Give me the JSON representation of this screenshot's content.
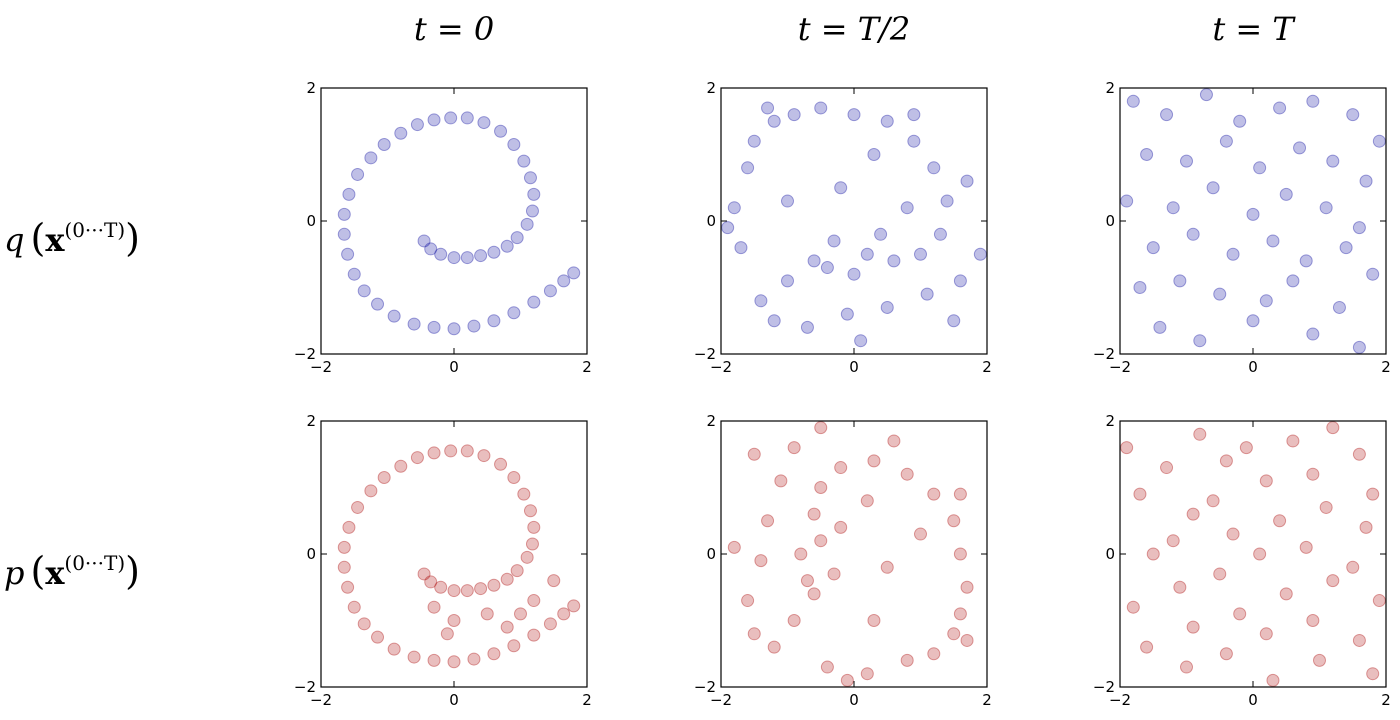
{
  "chart_data": [
    {
      "type": "scatter",
      "title": "t = 0",
      "row_label": {
        "func": "q",
        "open": "(",
        "var": "x",
        "sup": "(0···T)",
        "close": ")"
      },
      "color": "#1a1aa6",
      "x": [
        -0.45,
        -0.35,
        -0.2,
        0,
        0.2,
        0.4,
        0.6,
        0.8,
        0.95,
        1.1,
        1.18,
        1.2,
        1.15,
        1.05,
        0.9,
        0.7,
        0.45,
        0.2,
        -0.05,
        -0.3,
        -0.55,
        -0.8,
        -1.05,
        -1.25,
        -1.45,
        -1.58,
        -1.65,
        -1.65,
        -1.6,
        -1.5,
        -1.35,
        -1.15,
        -0.9,
        -0.6,
        -0.3,
        0,
        0.3,
        0.6,
        0.9,
        1.2,
        1.45,
        1.65,
        1.8
      ],
      "y": [
        -0.3,
        -0.42,
        -0.5,
        -0.55,
        -0.55,
        -0.52,
        -0.47,
        -0.38,
        -0.25,
        -0.05,
        0.15,
        0.4,
        0.65,
        0.9,
        1.15,
        1.35,
        1.48,
        1.55,
        1.55,
        1.52,
        1.45,
        1.32,
        1.15,
        0.95,
        0.7,
        0.4,
        0.1,
        -0.2,
        -0.5,
        -0.8,
        -1.05,
        -1.25,
        -1.43,
        -1.55,
        -1.6,
        -1.62,
        -1.58,
        -1.5,
        -1.38,
        -1.22,
        -1.05,
        -0.9,
        -0.78
      ],
      "xlim": [
        -2,
        2
      ],
      "ylim": [
        -2,
        2
      ],
      "xticks": [
        {
          "value": -2,
          "label": "−2"
        },
        0,
        2
      ],
      "yticks": [
        {
          "value": -2,
          "label": "−2"
        },
        0,
        2
      ]
    },
    {
      "type": "scatter",
      "title": "t = T/2",
      "color": "#1a1aa6",
      "x": [
        -1.5,
        -1.2,
        -0.9,
        -0.5,
        0,
        0.5,
        0.9,
        1.2,
        1.4,
        1.3,
        1.0,
        0.6,
        0.2,
        -0.3,
        -0.6,
        -1.0,
        -1.4,
        -1.7,
        -1.8,
        -1.6,
        -1.2,
        -0.7,
        -0.1,
        0.5,
        1.1,
        1.6,
        1.9,
        -0.4,
        0,
        0.4,
        0.8,
        -0.2,
        0.3,
        -1.9,
        1.7,
        -1.0,
        0.1,
        -1.3,
        0.9,
        1.5
      ],
      "y": [
        1.2,
        1.5,
        1.6,
        1.7,
        1.6,
        1.5,
        1.2,
        0.8,
        0.3,
        -0.2,
        -0.5,
        -0.6,
        -0.5,
        -0.3,
        -0.6,
        -0.9,
        -1.2,
        -0.4,
        0.2,
        0.8,
        -1.5,
        -1.6,
        -1.4,
        -1.3,
        -1.1,
        -0.9,
        -0.5,
        -0.7,
        -0.8,
        -0.2,
        0.2,
        0.5,
        1.0,
        -0.1,
        0.6,
        0.3,
        -1.8,
        1.7,
        1.6,
        -1.5
      ],
      "xlim": [
        -2,
        2
      ],
      "ylim": [
        -2,
        2
      ],
      "xticks": [
        {
          "value": -2,
          "label": "−2"
        },
        0,
        2
      ],
      "yticks": [
        {
          "value": -2,
          "label": "−2"
        },
        0,
        2
      ]
    },
    {
      "type": "scatter",
      "title": "t = T",
      "color": "#1a1aa6",
      "x": [
        -1.8,
        -1.3,
        -0.7,
        -0.2,
        0.4,
        0.9,
        1.5,
        1.9,
        -1.6,
        -1.0,
        -0.4,
        0.1,
        0.7,
        1.2,
        1.7,
        -1.9,
        -1.2,
        -0.6,
        0,
        0.5,
        1.1,
        1.6,
        -1.5,
        -0.9,
        -0.3,
        0.3,
        0.8,
        1.4,
        1.8,
        -1.7,
        -1.1,
        -0.5,
        0.2,
        0.6,
        1.3,
        -1.4,
        -0.8,
        0,
        0.9,
        1.6
      ],
      "y": [
        1.8,
        1.6,
        1.9,
        1.5,
        1.7,
        1.8,
        1.6,
        1.2,
        1.0,
        0.9,
        1.2,
        0.8,
        1.1,
        0.9,
        0.6,
        0.3,
        0.2,
        0.5,
        0.1,
        0.4,
        0.2,
        -0.1,
        -0.4,
        -0.2,
        -0.5,
        -0.3,
        -0.6,
        -0.4,
        -0.8,
        -1.0,
        -0.9,
        -1.1,
        -1.2,
        -0.9,
        -1.3,
        -1.6,
        -1.8,
        -1.5,
        -1.7,
        -1.9
      ],
      "xlim": [
        -2,
        2
      ],
      "ylim": [
        -2,
        2
      ],
      "xticks": [
        {
          "value": -2,
          "label": "−2"
        },
        0,
        2
      ],
      "yticks": [
        {
          "value": -2,
          "label": "−2"
        },
        0,
        2
      ]
    },
    {
      "type": "scatter",
      "row_label": {
        "func": "p",
        "open": "(",
        "var": "x",
        "sup": "(0···T)",
        "close": ")"
      },
      "color": "#b01414",
      "x": [
        -0.45,
        -0.35,
        -0.2,
        0,
        0.2,
        0.4,
        0.6,
        0.8,
        0.95,
        1.1,
        1.18,
        1.2,
        1.15,
        1.05,
        0.9,
        0.7,
        0.45,
        0.2,
        -0.05,
        -0.3,
        -0.55,
        -0.8,
        -1.05,
        -1.25,
        -1.45,
        -1.58,
        -1.65,
        -1.65,
        -1.6,
        -1.5,
        -1.35,
        -1.15,
        -0.9,
        -0.6,
        -0.3,
        0,
        0.3,
        0.6,
        0.9,
        1.2,
        1.45,
        1.65,
        1.8,
        -0.3,
        0,
        0.5,
        1.0,
        1.5,
        -0.1,
        1.2,
        0.8
      ],
      "y": [
        -0.3,
        -0.42,
        -0.5,
        -0.55,
        -0.55,
        -0.52,
        -0.47,
        -0.38,
        -0.25,
        -0.05,
        0.15,
        0.4,
        0.65,
        0.9,
        1.15,
        1.35,
        1.48,
        1.55,
        1.55,
        1.52,
        1.45,
        1.32,
        1.15,
        0.95,
        0.7,
        0.4,
        0.1,
        -0.2,
        -0.5,
        -0.8,
        -1.05,
        -1.25,
        -1.43,
        -1.55,
        -1.6,
        -1.62,
        -1.58,
        -1.5,
        -1.38,
        -1.22,
        -1.05,
        -0.9,
        -0.78,
        -0.8,
        -1.0,
        -0.9,
        -0.9,
        -0.4,
        -1.2,
        -0.7,
        -1.1
      ],
      "xlim": [
        -2,
        2
      ],
      "ylim": [
        -2,
        2
      ],
      "xticks": [
        {
          "value": -2,
          "label": "−2"
        },
        0,
        2
      ],
      "yticks": [
        {
          "value": -2,
          "label": "−2"
        },
        0,
        2
      ]
    },
    {
      "type": "scatter",
      "color": "#b01414",
      "x": [
        1.2,
        1.5,
        1.6,
        1.7,
        1.6,
        1.5,
        1.2,
        0.8,
        0.3,
        -0.2,
        -0.5,
        -0.6,
        -0.5,
        -0.3,
        -0.6,
        -0.9,
        -1.2,
        -0.4,
        0.2,
        0.8,
        -1.5,
        -1.6,
        -1.4,
        -1.3,
        -1.1,
        -0.9,
        -0.5,
        -0.7,
        -0.8,
        -0.2,
        0.2,
        0.5,
        1.0,
        -0.1,
        0.6,
        0.3,
        -1.8,
        1.7,
        1.6,
        -1.5
      ],
      "y": [
        -1.5,
        -1.2,
        -0.9,
        -0.5,
        0,
        0.5,
        0.9,
        1.2,
        1.4,
        1.3,
        1.0,
        0.6,
        0.2,
        -0.3,
        -0.6,
        -1.0,
        -1.4,
        -1.7,
        -1.8,
        -1.6,
        -1.2,
        -0.7,
        -0.1,
        0.5,
        1.1,
        1.6,
        1.9,
        -0.4,
        0,
        0.4,
        0.8,
        -0.2,
        0.3,
        -1.9,
        1.7,
        -1.0,
        0.1,
        -1.3,
        0.9,
        1.5
      ],
      "xlim": [
        -2,
        2
      ],
      "ylim": [
        -2,
        2
      ],
      "xticks": [
        {
          "value": -2,
          "label": "−2"
        },
        0,
        2
      ],
      "yticks": [
        {
          "value": -2,
          "label": "−2"
        },
        0,
        2
      ]
    },
    {
      "type": "scatter",
      "color": "#b01414",
      "x": [
        1.8,
        1.6,
        1.9,
        1.5,
        1.7,
        1.8,
        1.6,
        1.2,
        1.0,
        0.9,
        1.2,
        0.8,
        1.1,
        0.9,
        0.6,
        0.3,
        0.2,
        0.5,
        0.1,
        0.4,
        0.2,
        -0.1,
        -0.4,
        -0.2,
        -0.5,
        -0.3,
        -0.6,
        -0.4,
        -0.8,
        -1.0,
        -0.9,
        -1.1,
        -1.2,
        -0.9,
        -1.3,
        -1.6,
        -1.8,
        -1.5,
        -1.7,
        -1.9
      ],
      "y": [
        -1.8,
        -1.3,
        -0.7,
        -0.2,
        0.4,
        0.9,
        1.5,
        1.9,
        -1.6,
        -1.0,
        -0.4,
        0.1,
        0.7,
        1.2,
        1.7,
        -1.9,
        -1.2,
        -0.6,
        0,
        0.5,
        1.1,
        1.6,
        -1.5,
        -0.9,
        -0.3,
        0.3,
        0.8,
        1.4,
        1.8,
        -1.7,
        -1.1,
        -0.5,
        0.2,
        0.6,
        1.3,
        -1.4,
        -0.8,
        0,
        0.9,
        1.6
      ],
      "xlim": [
        -2,
        2
      ],
      "ylim": [
        -2,
        2
      ],
      "xticks": [
        {
          "value": -2,
          "label": "−2"
        },
        0,
        2
      ],
      "yticks": [
        {
          "value": -2,
          "label": "−2"
        },
        0,
        2
      ]
    }
  ]
}
